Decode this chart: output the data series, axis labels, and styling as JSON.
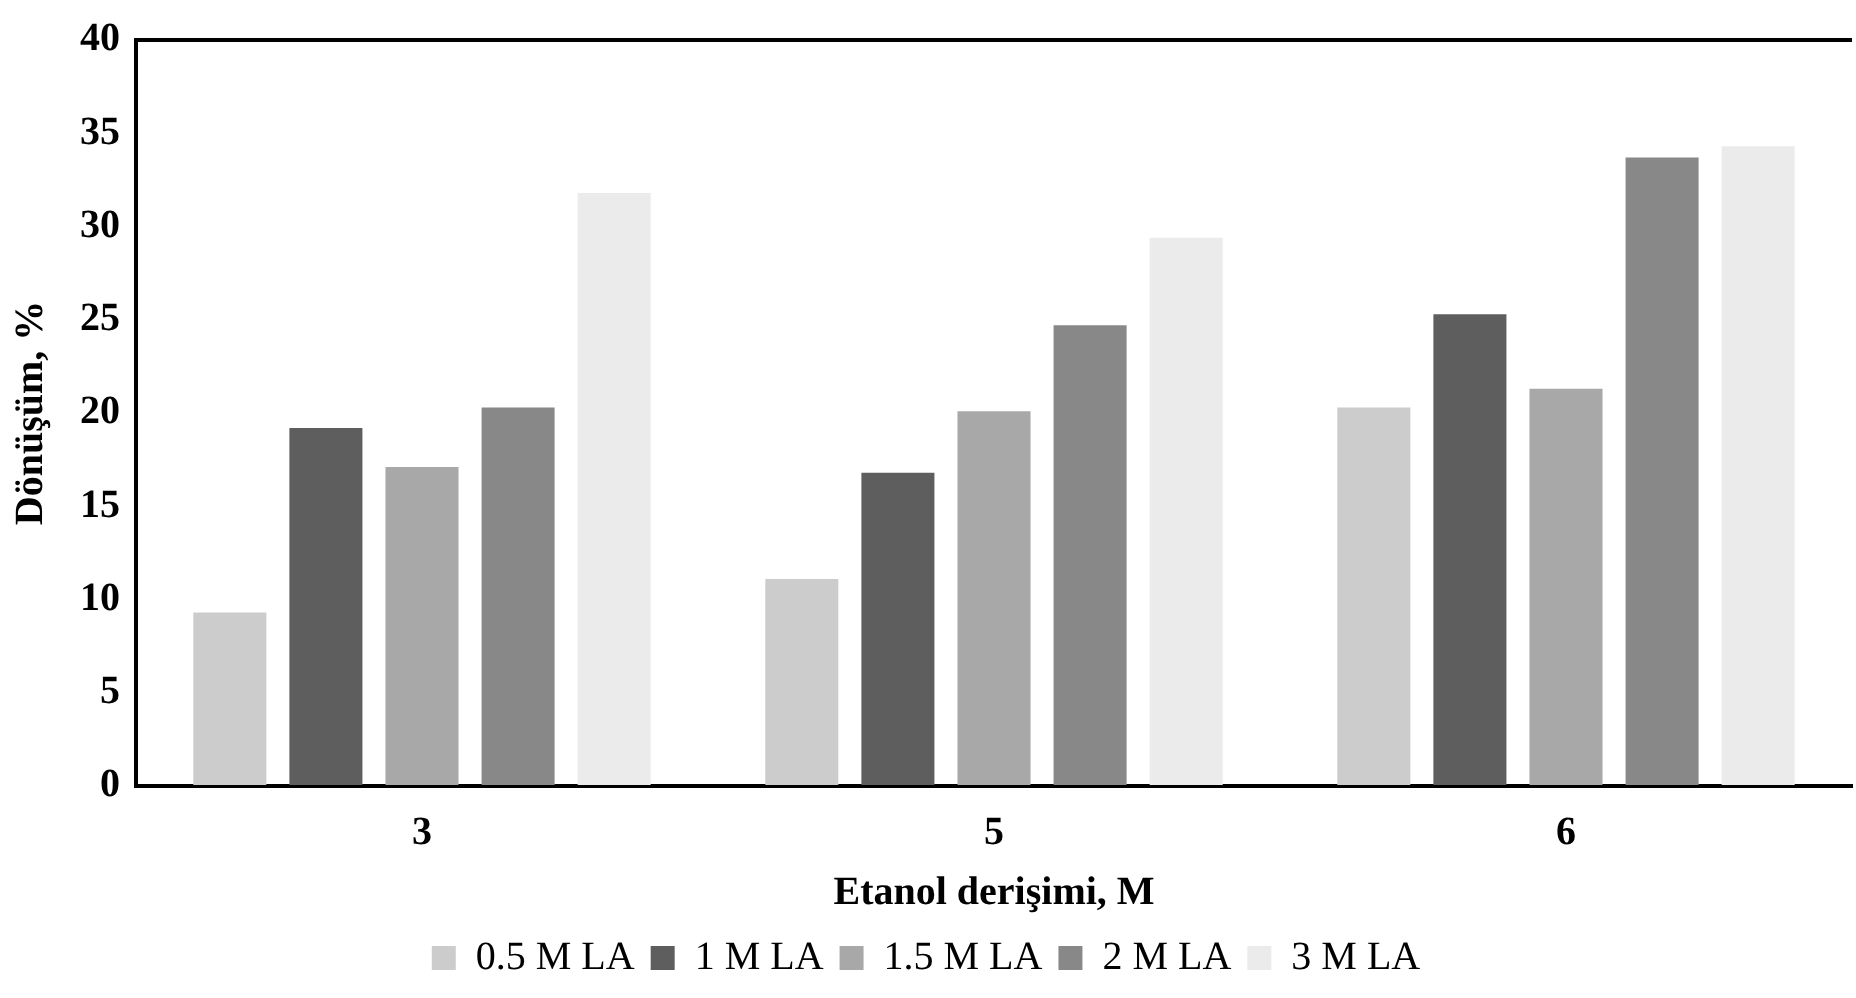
{
  "chart_data": {
    "type": "bar",
    "xlabel": "Etanol derişimi, M",
    "ylabel": "Dönüşüm, %",
    "categories": [
      "3",
      "5",
      "6"
    ],
    "series": [
      {
        "name": "0.5 M LA",
        "color": "#cccccc",
        "values": [
          9.3,
          11.1,
          20.3
        ]
      },
      {
        "name": "1 M LA",
        "color": "#5e5e5e",
        "values": [
          19.2,
          16.8,
          25.3
        ]
      },
      {
        "name": "1.5 M LA",
        "color": "#a8a8a8",
        "values": [
          17.1,
          20.1,
          21.3
        ]
      },
      {
        "name": "2 M LA",
        "color": "#888888",
        "values": [
          20.3,
          24.7,
          33.7
        ]
      },
      {
        "name": "3 M LA",
        "color": "#ebebeb",
        "values": [
          31.8,
          29.4,
          34.3
        ]
      }
    ],
    "ylim": [
      0,
      40
    ],
    "yticks": [
      0,
      5,
      10,
      15,
      20,
      25,
      30,
      35,
      40
    ],
    "grid": false,
    "legend": "bottom"
  }
}
